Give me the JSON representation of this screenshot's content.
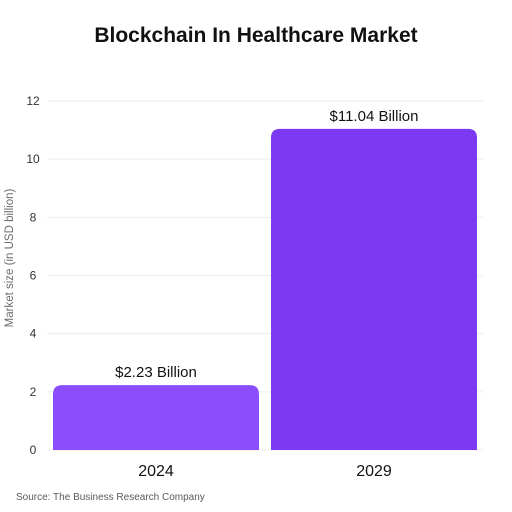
{
  "chart_data": {
    "type": "bar",
    "title": "Blockchain In Healthcare Market",
    "xlabel": "",
    "ylabel": "Market size (in USD billion)",
    "categories": [
      "2024",
      "2029"
    ],
    "values": [
      2.23,
      11.04
    ],
    "data_labels": [
      "$2.23 Billion",
      "$11.04 Billion"
    ],
    "ylim": [
      0,
      12
    ],
    "yticks": [
      0,
      2,
      4,
      6,
      8,
      10,
      12
    ],
    "grid": true,
    "legend": "none",
    "bar_colors": [
      "#8b4dfb",
      "#7b3af2"
    ],
    "source": "Source: The Business Research Company"
  }
}
